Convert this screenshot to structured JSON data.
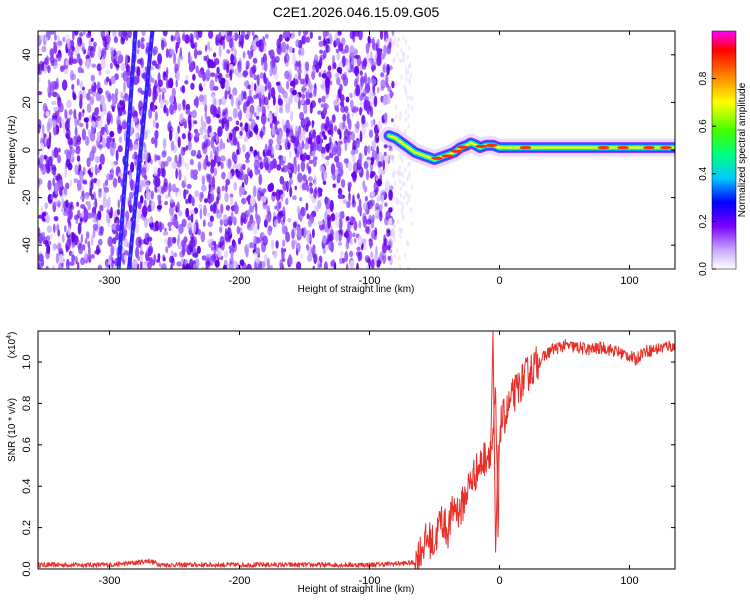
{
  "title": "C2E1.2026.046.15.09.G05",
  "chart_data": [
    {
      "type": "heatmap",
      "xlabel": "Height of straight line (km)",
      "ylabel": "Frequency (Hz)",
      "xlim": [
        -355,
        135
      ],
      "ylim": [
        -50,
        50
      ],
      "xticks": [
        -300,
        -200,
        -100,
        0,
        100
      ],
      "yticks": [
        -40,
        -20,
        0,
        20,
        40
      ],
      "colorbar": {
        "label": "Normalized spectral amplitude",
        "range": [
          0,
          1
        ],
        "ticks": [
          0.0,
          0.2,
          0.4,
          0.6,
          0.8
        ]
      },
      "noise_region_x": [
        -355,
        -82
      ],
      "signal_track": [
        [
          -85,
          6
        ],
        [
          -80,
          5
        ],
        [
          -75,
          3
        ],
        [
          -70,
          1
        ],
        [
          -65,
          -1
        ],
        [
          -60,
          -2
        ],
        [
          -55,
          -3
        ],
        [
          -50,
          -4
        ],
        [
          -45,
          -3
        ],
        [
          -40,
          -2
        ],
        [
          -35,
          -1
        ],
        [
          -30,
          1
        ],
        [
          -25,
          2
        ],
        [
          -22,
          3
        ],
        [
          -18,
          2
        ],
        [
          -15,
          1
        ],
        [
          -10,
          2
        ],
        [
          -5,
          2
        ],
        [
          0,
          1
        ],
        [
          10,
          1
        ],
        [
          30,
          1
        ],
        [
          60,
          1
        ],
        [
          90,
          1
        ],
        [
          135,
          1
        ]
      ],
      "oblique_tracks": [
        {
          "x": [
            -293,
            -280
          ],
          "y": [
            -50,
            50
          ]
        },
        {
          "x": [
            -285,
            -267
          ],
          "y": [
            -50,
            50
          ]
        }
      ]
    },
    {
      "type": "line",
      "xlabel": "Height of straight line (km)",
      "ylabel": "SNR (10 * v/v)",
      "yunit_label": "(x10",
      "yunit_exp": "4",
      "yunit_close": ")",
      "xlim": [
        -355,
        135
      ],
      "ylim": [
        0,
        1.15
      ],
      "xticks": [
        -300,
        -200,
        -100,
        0,
        100
      ],
      "yticks": [
        0.0,
        0.2,
        0.4,
        0.6,
        0.8,
        1.0
      ],
      "series": [
        {
          "color": "#e8302a",
          "x": [
            -355,
            -300,
            -280,
            -270,
            -260,
            -200,
            -100,
            -65,
            -60,
            -55,
            -50,
            -45,
            -40,
            -35,
            -30,
            -25,
            -20,
            -15,
            -10,
            -5,
            -3,
            -1,
            0,
            2,
            5,
            10,
            15,
            20,
            25,
            30,
            35,
            40,
            50,
            60,
            70,
            80,
            90,
            100,
            105,
            110,
            120,
            130,
            135
          ],
          "y": [
            0.02,
            0.02,
            0.03,
            0.04,
            0.02,
            0.02,
            0.02,
            0.03,
            0.1,
            0.15,
            0.12,
            0.25,
            0.18,
            0.3,
            0.28,
            0.38,
            0.45,
            0.5,
            0.55,
            0.6,
            0.85,
            0.1,
            0.68,
            0.72,
            0.75,
            0.83,
            0.88,
            0.93,
            0.97,
            1.0,
            1.03,
            1.06,
            1.08,
            1.07,
            1.06,
            1.07,
            1.05,
            1.03,
            1.01,
            1.05,
            1.06,
            1.08,
            1.07
          ]
        }
      ]
    }
  ]
}
